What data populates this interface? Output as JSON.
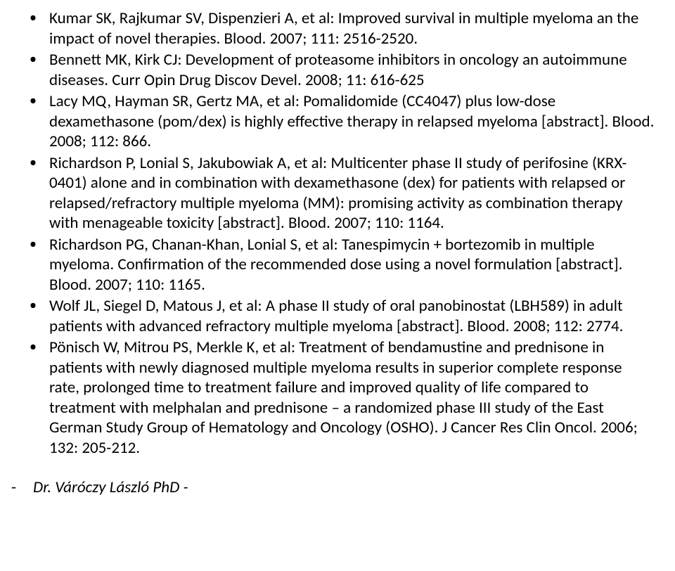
{
  "references": [
    "Kumar SK, Rajkumar SV, Dispenzieri A, et al: Improved survival in multiple myeloma an the impact of novel therapies. Blood. 2007; 111: 2516-2520.",
    "Bennett MK, Kirk CJ: Development of proteasome inhibitors in oncology an autoimmune diseases. Curr Opin Drug Discov Devel. 2008; 11: 616-625",
    "Lacy MQ, Hayman SR, Gertz MA, et al: Pomalidomide (CC4047) plus low-dose dexamethasone (pom/dex) is highly effective therapy in relapsed myeloma [abstract]. Blood. 2008; 112: 866.",
    "Richardson P, Lonial S, Jakubowiak A, et al: Multicenter phase II study of perifosine (KRX-0401) alone and in combination with dexamethasone (dex) for patients with relapsed or relapsed/refractory multiple myeloma (MM): promising activity as combination therapy with menageable toxicity [abstract]. Blood. 2007; 110: 1164.",
    "Richardson PG, Chanan-Khan, Lonial S, et al: Tanespimycin + bortezomib in multiple myeloma. Confirmation of the recommended dose using a novel formulation [abstract]. Blood. 2007; 110: 1165.",
    "Wolf JL, Siegel D, Matous J, et al: A phase II study of oral panobinostat (LBH589) in adult patients with advanced refractory multiple myeloma [abstract]. Blood. 2008; 112: 2774.",
    "Pönisch W, Mitrou PS, Merkle K, et al: Treatment of bendamustine and prednisone in patients with newly diagnosed multiple myeloma results in superior complete response rate, prolonged time to treatment failure and improved quality of life compared to treatment with melphalan and prednisone – a randomized phase III study of the East German Study Group of Hematology and Oncology (OSHO). J Cancer Res Clin Oncol. 2006; 132: 205-212."
  ],
  "author": "Dr. Váróczy László PhD -"
}
